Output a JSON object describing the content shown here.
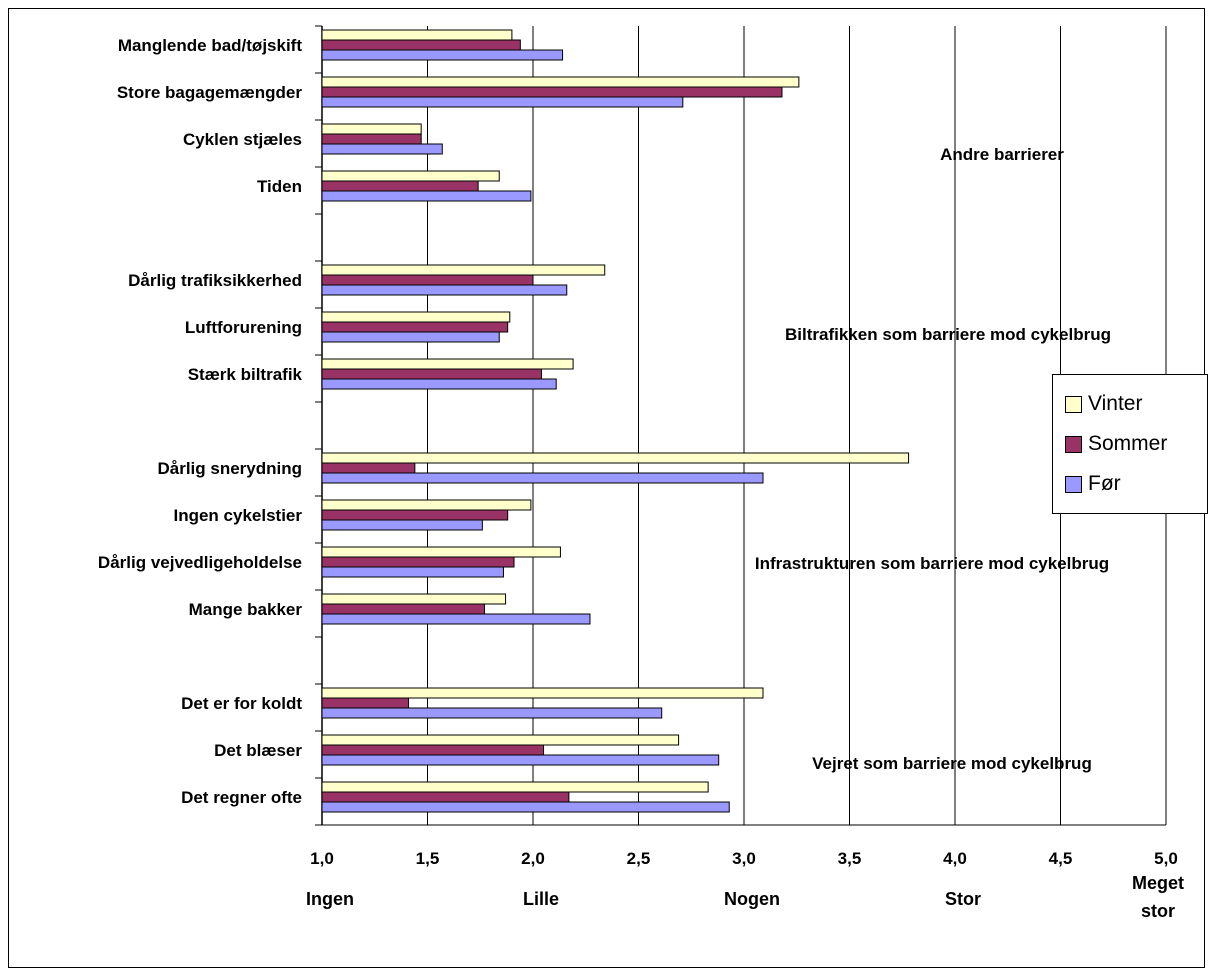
{
  "chart_data": {
    "type": "bar",
    "orientation": "horizontal",
    "categories": [
      "Manglende bad/tøjskift",
      "Store bagagemængder",
      "Cyklen stjæles",
      "Tiden",
      "Dårlig trafiksikkerhed",
      "Luftforurening",
      "Stærk biltrafik",
      "Dårlig snerydning",
      "Ingen cykelstier",
      "Dårlig vejvedligeholdelse",
      "Mange bakker",
      "Det er for koldt",
      "Det blæser",
      "Det regner ofte"
    ],
    "series": [
      {
        "name": "Vinter",
        "color": "#ffffcc",
        "values": [
          1.9,
          3.26,
          1.47,
          1.84,
          2.34,
          1.89,
          2.19,
          3.78,
          1.99,
          2.13,
          1.87,
          3.09,
          2.69,
          2.83
        ]
      },
      {
        "name": "Sommer",
        "color": "#993366",
        "values": [
          1.94,
          3.18,
          1.47,
          1.74,
          2.0,
          1.88,
          2.04,
          1.44,
          1.88,
          1.91,
          1.77,
          1.41,
          2.05,
          2.17
        ]
      },
      {
        "name": "Før",
        "color": "#9999ff",
        "values": [
          2.14,
          2.71,
          1.57,
          1.99,
          2.16,
          1.84,
          2.11,
          3.09,
          1.76,
          1.86,
          2.27,
          2.61,
          2.88,
          2.93
        ]
      }
    ],
    "groups": [
      {
        "label": "Andre barrierer",
        "category_count": 4
      },
      {
        "label": "Biltrafikken som barriere mod cykelbrug",
        "category_count": 3
      },
      {
        "label": "Infrastrukturen som barriere mod cykelbrug",
        "category_count": 4
      },
      {
        "label": "Vejret som barriere mod cykelbrug",
        "category_count": 3
      }
    ],
    "xlim": [
      1.0,
      5.0
    ],
    "x_ticks": [
      "1,0",
      "1,5",
      "2,0",
      "2,5",
      "3,0",
      "3,5",
      "4,0",
      "4,5",
      "5,0"
    ],
    "scale_labels": [
      {
        "value": 1.0,
        "text": "Ingen"
      },
      {
        "value": 2.0,
        "text": "Lille"
      },
      {
        "value": 3.0,
        "text": "Nogen"
      },
      {
        "value": 4.0,
        "text": "Stor"
      },
      {
        "value": 5.0,
        "text": "Meget stor"
      }
    ],
    "grid": true,
    "legend_position": "right"
  }
}
